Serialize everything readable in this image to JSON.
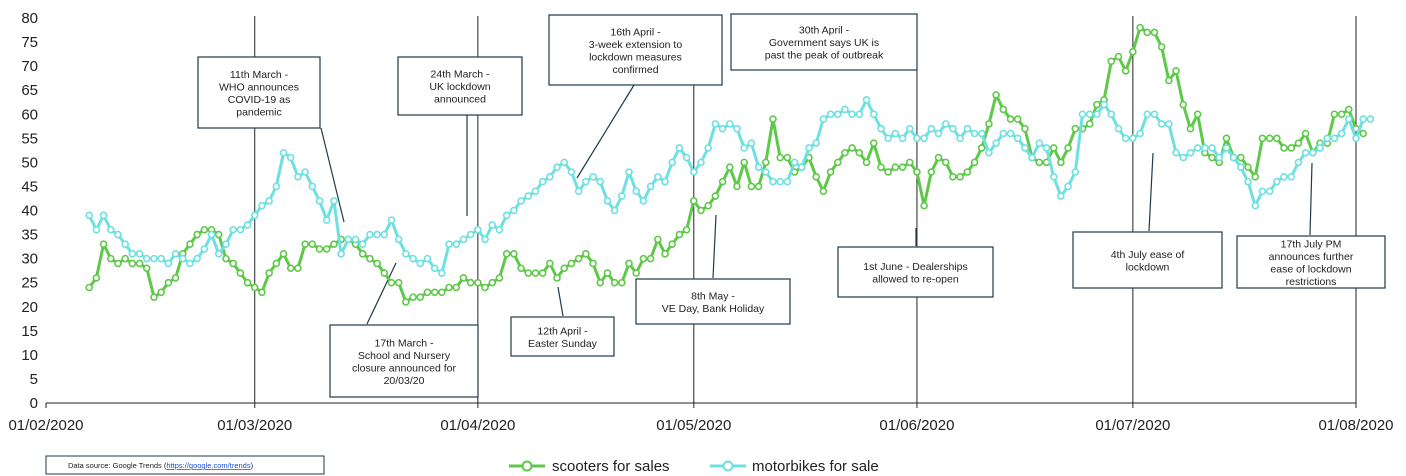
{
  "chart_data": {
    "type": "line",
    "x_start": "2020-02-07",
    "x_step_days": 1,
    "series": [
      {
        "name": "scooters for sales",
        "color": "#5ec948",
        "values": [
          24,
          26,
          33,
          30,
          29,
          30,
          29,
          29,
          28,
          22,
          23,
          25,
          26,
          31,
          33,
          35,
          36,
          36,
          35,
          30,
          29,
          27,
          25,
          24,
          23,
          27,
          29,
          31,
          28,
          28,
          33,
          33,
          32,
          32,
          33,
          34,
          34,
          33,
          31,
          30,
          29,
          27,
          25,
          25,
          21,
          22,
          22,
          23,
          23,
          23,
          24,
          24,
          26,
          25,
          25,
          24,
          25,
          26,
          31,
          31,
          28,
          27,
          27,
          27,
          29,
          26,
          28,
          29,
          30,
          31,
          29,
          25,
          27,
          25,
          25,
          29,
          27,
          30,
          30,
          34,
          31,
          33,
          35,
          36,
          42,
          40,
          41,
          43,
          46,
          49,
          45,
          50,
          45,
          45,
          50,
          59,
          51,
          51,
          48,
          49,
          51,
          47,
          44,
          48,
          50,
          52,
          53,
          52,
          50,
          54,
          49,
          48,
          49,
          49,
          50,
          48,
          41,
          48,
          51,
          50,
          47,
          47,
          48,
          50,
          53,
          58,
          64,
          61,
          59,
          59,
          57,
          51,
          50,
          50,
          53,
          50,
          53,
          57,
          57,
          58,
          62,
          63,
          71,
          72,
          69,
          73,
          78,
          77,
          77,
          74,
          67,
          69,
          62,
          57,
          60,
          52,
          51,
          50,
          55,
          51,
          51,
          49,
          47,
          55,
          55,
          55,
          53,
          53,
          54,
          56,
          52,
          54,
          54,
          60,
          60,
          61,
          57,
          56
        ]
      },
      {
        "name": "motorbikes for sale",
        "color": "#6ee0e2",
        "values": [
          39,
          36,
          39,
          36,
          35,
          33,
          31,
          31,
          30,
          30,
          30,
          29,
          31,
          30,
          29,
          30,
          32,
          35,
          31,
          33,
          36,
          36,
          37,
          39,
          41,
          42,
          45,
          52,
          51,
          47,
          48,
          45,
          42,
          38,
          42,
          31,
          34,
          34,
          33,
          35,
          35,
          35,
          38,
          34,
          31,
          30,
          29,
          30,
          28,
          27,
          33,
          33,
          34,
          35,
          36,
          34,
          37,
          36,
          39,
          40,
          42,
          43,
          44,
          46,
          47,
          49,
          50,
          48,
          44,
          46,
          47,
          46,
          42,
          40,
          43,
          48,
          44,
          42,
          45,
          47,
          46,
          50,
          53,
          51,
          48,
          50,
          53,
          58,
          57,
          58,
          57,
          53,
          54,
          49,
          48,
          46,
          46,
          46,
          50,
          49,
          53,
          54,
          59,
          60,
          60,
          61,
          60,
          60,
          63,
          60,
          57,
          55,
          56,
          55,
          57,
          55,
          55,
          57,
          56,
          58,
          57,
          55,
          57,
          56,
          56,
          52,
          54,
          56,
          56,
          55,
          53,
          51,
          54,
          53,
          47,
          43,
          45,
          48,
          60,
          60,
          60,
          62,
          60,
          57,
          55,
          55,
          56,
          60,
          60,
          58,
          58,
          52,
          51,
          52,
          53,
          53,
          53,
          51,
          53,
          51,
          49,
          46,
          41,
          44,
          44,
          46,
          47,
          47,
          50,
          52,
          52,
          53,
          55,
          55,
          56,
          59,
          55,
          59,
          59
        ]
      }
    ],
    "ylim": [
      0,
      80
    ],
    "yticks": [
      "0",
      "5",
      "10",
      "15",
      "20",
      "25",
      "30",
      "35",
      "40",
      "45",
      "50",
      "55",
      "60",
      "65",
      "70",
      "75",
      "80"
    ],
    "xticks": [
      "01/02/2020",
      "01/03/2020",
      "01/04/2020",
      "01/05/2020",
      "01/06/2020",
      "01/07/2020",
      "01/08/2020"
    ],
    "event_dates": [
      "2020-03-01",
      "2020-04-01",
      "2020-05-01",
      "2020-06-01",
      "2020-07-01",
      "2020-08-01"
    ],
    "legend_position": "bottom-center",
    "annotations": [
      {
        "lines": [
          "11th March -",
          "WHO announces",
          "COVID-19 as",
          "pandemic"
        ]
      },
      {
        "lines": [
          "17th March -",
          "School and Nursery",
          "closure announced for",
          "20/03/20"
        ]
      },
      {
        "lines": [
          "24th March -",
          "UK lockdown",
          "announced"
        ]
      },
      {
        "lines": [
          "12th April -",
          "Easter Sunday"
        ]
      },
      {
        "lines": [
          "16th April -",
          "3-week extension to",
          "lockdown measures",
          "confirmed"
        ]
      },
      {
        "lines": [
          "30th April -",
          "Government says UK is",
          "past the peak of outbreak"
        ]
      },
      {
        "lines": [
          "8th May -",
          "VE Day, Bank Holiday"
        ]
      },
      {
        "lines": [
          "1st June - Dealerships",
          "allowed to re-open"
        ]
      },
      {
        "lines": [
          "4th July  ease of",
          "lockdown"
        ]
      },
      {
        "lines": [
          "17th July PM",
          "announces further",
          "ease of lockdown",
          "restrictions"
        ]
      }
    ],
    "source": {
      "prefix": "Data source:  Google Trends (",
      "link": "https://google.com/trends",
      "suffix": ")"
    }
  }
}
